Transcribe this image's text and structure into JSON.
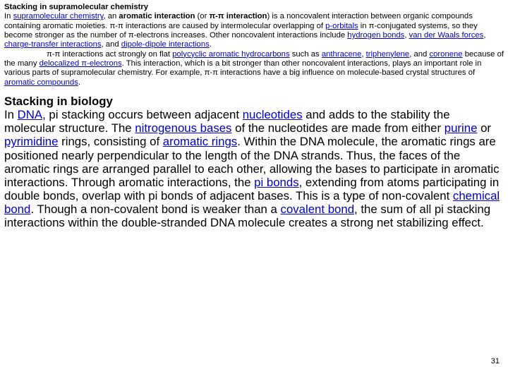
{
  "section1": {
    "heading": "Stacking in supramolecular chemistry",
    "p1_a": "In ",
    "p1_link1": "supramolecular chemistry",
    "p1_b": ", an ",
    "p1_bold1": "aromatic interaction",
    "p1_c": " (or ",
    "p1_bold2": "π-π interaction",
    "p1_d": ") is a noncovalent interaction between organic compounds containing aromatic moieties. π-π interactions are caused by intermolecular overlapping of ",
    "p1_link2": "p-orbitals",
    "p1_e": " in π-conjugated systems, so they become stronger as the number of π-electrons increases. Other noncovalent interactions include ",
    "p1_link3": "hydrogen bonds",
    "p1_f": ", ",
    "p1_link4": "van der Waals forces",
    "p1_g": ", ",
    "p1_link5": "charge-transfer interactions",
    "p1_h": ", and ",
    "p1_link6": "dipole-dipole interactions",
    "p1_i": ".",
    "p2_a": "π-π interactions act strongly on flat ",
    "p2_link1": "polycyclic aromatic hydrocarbons",
    "p2_b": " such as ",
    "p2_link2": "anthracene",
    "p2_c": ", ",
    "p2_link3": "triphenylene",
    "p2_d": ", and ",
    "p2_link4": "coronene",
    "p2_e": " because of the many ",
    "p2_link5": "delocalized π-electrons",
    "p2_f": ". This interaction, which is a bit stronger than other noncovalent interactions, plays an important role in various parts of supramolecular chemistry. For example, π-π interactions have a big influence on molecule-based crystal structures of ",
    "p2_link6": "aromatic compounds",
    "p2_g": "."
  },
  "section2": {
    "heading": " Stacking in biology",
    "p_a": "In ",
    "p_link1": "DNA",
    "p_b": ", pi stacking occurs between adjacent ",
    "p_link2": "nucleotides",
    "p_c": " and adds to the stability the molecular structure. The ",
    "p_link3": "nitrogenous bases",
    "p_d": " of the nucleotides are made from either ",
    "p_link4": "purine",
    "p_e": " or ",
    "p_link5": "pyrimidine",
    "p_f": " rings, consisting of ",
    "p_link6": "aromatic rings",
    "p_g": ". Within the DNA molecule, the aromatic rings are positioned nearly perpendicular to the length of the DNA strands. Thus, the faces of the aromatic rings are arranged parallel to each other, allowing the bases to participate in aromatic interactions. Through aromatic interactions, the ",
    "p_link7": "pi bonds",
    "p_h": ", extending from atoms participating in double bonds, overlap with pi bonds of adjacent bases. This is a type of non-covalent ",
    "p_link8": "chemical bond",
    "p_i": ". Though a non-covalent bond is weaker than a ",
    "p_link9": "covalent bond",
    "p_j": ", the sum of all pi stacking interactions within the double-stranded DNA molecule creates a strong net stabilizing effect."
  },
  "pagenum": "31"
}
